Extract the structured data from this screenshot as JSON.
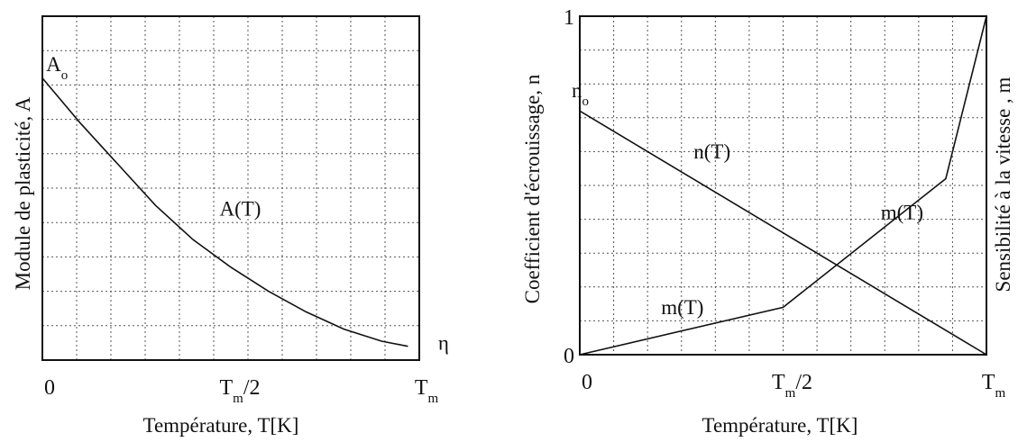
{
  "chart_data": [
    {
      "type": "line",
      "xlabel": "Température, T[K]",
      "ylabel": "Module de plasticité, A",
      "x_ticks": [
        {
          "x": 0,
          "label": "0"
        },
        {
          "x": 0.5,
          "label": "T",
          "sub": "m",
          "suffix": "/2"
        },
        {
          "x": 1,
          "label": "T",
          "sub": "m",
          "suffix": ""
        }
      ],
      "xlim": [
        0,
        1
      ],
      "ylim": [
        0,
        1
      ],
      "grid": true,
      "series": [
        {
          "name": "A(T)",
          "x": [
            0,
            0.1,
            0.2,
            0.3,
            0.4,
            0.5,
            0.6,
            0.7,
            0.8,
            0.9,
            0.97
          ],
          "y": [
            0.82,
            0.69,
            0.57,
            0.45,
            0.35,
            0.27,
            0.2,
            0.14,
            0.09,
            0.055,
            0.04
          ]
        }
      ],
      "annotations": [
        {
          "text": "A",
          "sub": "o",
          "x": 0.01,
          "y": 0.84
        },
        {
          "text": "A(T)",
          "x": 0.47,
          "y": 0.42
        },
        {
          "text": "η",
          "x": 1.05,
          "y": 0.03
        }
      ]
    },
    {
      "type": "line",
      "xlabel": "Température, T[K]",
      "ylabel": "Coefficient d'écrouissage, n",
      "ylabel_right": "Sensibilité à la vitesse , m",
      "x_ticks": [
        {
          "x": 0,
          "label": "0"
        },
        {
          "x": 0.5,
          "label": "T",
          "sub": "m",
          "suffix": "/2"
        },
        {
          "x": 1,
          "label": "T",
          "sub": "m",
          "suffix": ""
        }
      ],
      "y_ticks": [
        {
          "y": 0,
          "label": "0"
        },
        {
          "y": 1,
          "label": "1"
        }
      ],
      "xlim": [
        0,
        1
      ],
      "ylim": [
        0,
        1
      ],
      "grid": true,
      "series": [
        {
          "name": "n(T)",
          "x": [
            0,
            1
          ],
          "y": [
            0.72,
            0
          ]
        },
        {
          "name": "m(T)",
          "x": [
            0,
            0.5,
            0.9,
            1
          ],
          "y": [
            0,
            0.14,
            0.52,
            1
          ]
        }
      ],
      "annotations": [
        {
          "text": "n",
          "sub": "o",
          "x": -0.02,
          "y": 0.76
        },
        {
          "text": "n(T)",
          "x": 0.28,
          "y": 0.58
        },
        {
          "text": "m(T)",
          "x": 0.74,
          "y": 0.4
        },
        {
          "text": "m(T)",
          "x": 0.2,
          "y": 0.12
        }
      ]
    }
  ]
}
